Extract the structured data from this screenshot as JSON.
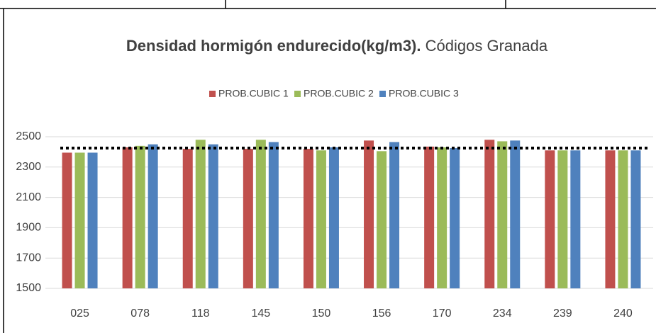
{
  "chart_data": {
    "type": "bar",
    "title": "Densidad hormigón endurecido(kg/m3).",
    "subtitle": "Códigos Granada",
    "categories": [
      "025",
      "078",
      "118",
      "145",
      "150",
      "156",
      "170",
      "234",
      "239",
      "240"
    ],
    "series": [
      {
        "name": "PROB.CUBIC 1",
        "color": "#c0504d",
        "values": [
          2395,
          2430,
          2420,
          2420,
          2420,
          2475,
          2435,
          2480,
          2410,
          2410
        ]
      },
      {
        "name": "PROB.CUBIC 2",
        "color": "#9bbb59",
        "values": [
          2395,
          2440,
          2480,
          2480,
          2410,
          2405,
          2430,
          2470,
          2410,
          2410
        ]
      },
      {
        "name": "PROB.CUBIC 3",
        "color": "#4f81bd",
        "values": [
          2395,
          2450,
          2450,
          2465,
          2430,
          2465,
          2425,
          2475,
          2410,
          2410
        ]
      }
    ],
    "reference_line": 2425,
    "ylim": [
      1500,
      2500
    ],
    "yticks": [
      1500,
      1700,
      1900,
      2100,
      2300,
      2500
    ],
    "grid": true,
    "legend": "top"
  }
}
